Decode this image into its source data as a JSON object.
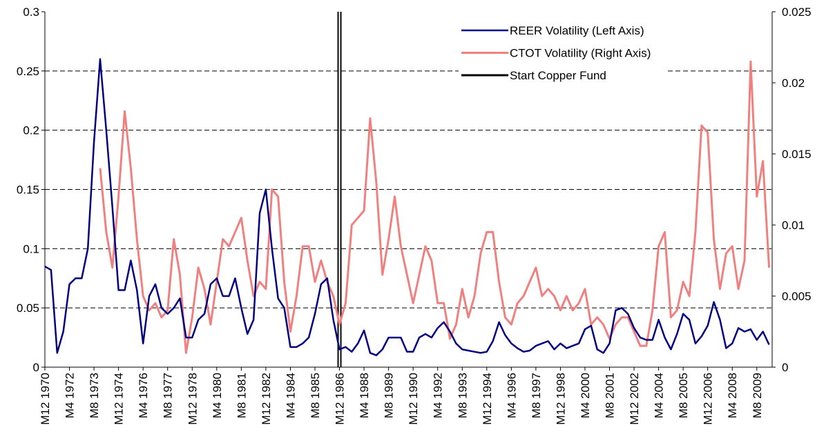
{
  "chart_data": {
    "type": "line",
    "categories": [
      "M12 1970",
      null,
      null,
      null,
      "M4 1972",
      null,
      null,
      null,
      "M8 1973",
      null,
      null,
      null,
      "M12 1974",
      null,
      null,
      null,
      "M4 1976",
      null,
      null,
      null,
      "M8 1977",
      null,
      null,
      null,
      "M12 1978",
      null,
      null,
      null,
      "M4 1980",
      null,
      null,
      null,
      "M8 1981",
      null,
      null,
      null,
      "M12 1982",
      null,
      null,
      null,
      "M4 1984",
      null,
      null,
      null,
      "M8 1985",
      null,
      null,
      null,
      "M12 1986",
      null,
      null,
      null,
      "M4 1988",
      null,
      null,
      null,
      "M8 1989",
      null,
      null,
      null,
      "M12 1990",
      null,
      null,
      null,
      "M4 1992",
      null,
      null,
      null,
      "M8 1993",
      null,
      null,
      null,
      "M12 1994",
      null,
      null,
      null,
      "M4 1996",
      null,
      null,
      null,
      "M8 1997",
      null,
      null,
      null,
      "M12 1998",
      null,
      null,
      null,
      "M4 2000",
      null,
      null,
      null,
      "M8 2001",
      null,
      null,
      null,
      "M12 2002",
      null,
      null,
      null,
      "M4 2004",
      null,
      null,
      null,
      "M8 2005",
      null,
      null,
      null,
      "M12 2006",
      null,
      null,
      null,
      "M4 2008",
      null,
      null,
      null,
      "M8 2009",
      null,
      null
    ],
    "series": [
      {
        "name": "REER Volatility (Left Axis)",
        "color": "#000080",
        "axis": "y",
        "values": [
          0.085,
          0.082,
          0.012,
          0.03,
          0.07,
          0.075,
          0.075,
          0.1,
          0.19,
          0.26,
          0.2,
          0.135,
          0.065,
          0.065,
          0.09,
          0.065,
          0.02,
          0.06,
          0.07,
          0.05,
          0.045,
          0.05,
          0.058,
          0.025,
          0.025,
          0.04,
          0.045,
          0.07,
          0.075,
          0.06,
          0.06,
          0.075,
          0.05,
          0.028,
          0.04,
          0.13,
          0.15,
          0.1,
          0.058,
          0.05,
          0.017,
          0.017,
          0.02,
          0.025,
          0.045,
          0.07,
          0.075,
          0.04,
          0.015,
          0.017,
          0.013,
          0.02,
          0.031,
          0.012,
          0.01,
          0.015,
          0.025,
          0.025,
          0.025,
          0.013,
          0.013,
          0.025,
          0.028,
          0.025,
          0.033,
          0.038,
          0.03,
          0.02,
          0.015,
          0.014,
          0.013,
          0.012,
          0.013,
          0.022,
          0.038,
          0.027,
          0.02,
          0.016,
          0.013,
          0.014,
          0.018,
          0.02,
          0.022,
          0.015,
          0.02,
          0.016,
          0.018,
          0.02,
          0.032,
          0.035,
          0.015,
          0.012,
          0.02,
          0.048,
          0.05,
          0.045,
          0.033,
          0.025,
          0.023,
          0.023,
          0.04,
          0.025,
          0.015,
          0.028,
          0.045,
          0.04,
          0.02,
          0.026,
          0.035,
          0.055,
          0.04,
          0.016,
          0.02,
          0.033,
          0.03,
          0.032,
          0.023,
          0.03,
          0.019
        ]
      },
      {
        "name": "CTOT Volatility (Right Axis)",
        "color": "#f08080",
        "axis": "y2",
        "values": [
          null,
          null,
          null,
          null,
          null,
          null,
          null,
          null,
          null,
          0.014,
          0.0095,
          0.007,
          0.012,
          0.018,
          0.014,
          0.009,
          0.005,
          0.004,
          0.0045,
          0.0035,
          0.004,
          0.009,
          0.0065,
          0.001,
          0.0035,
          0.007,
          0.0055,
          0.003,
          0.006,
          0.009,
          0.0085,
          0.0095,
          0.0105,
          0.0075,
          0.005,
          0.006,
          0.0055,
          0.0125,
          0.012,
          0.006,
          0.0025,
          0.005,
          0.0085,
          0.0085,
          0.006,
          0.0075,
          0.006,
          0.005,
          0.003,
          0.0045,
          0.01,
          0.0105,
          0.011,
          0.0175,
          0.013,
          0.0065,
          0.009,
          0.012,
          0.0085,
          0.0065,
          0.0045,
          0.0065,
          0.0085,
          0.0075,
          0.0045,
          0.0045,
          0.002,
          0.003,
          0.0055,
          0.0035,
          0.005,
          0.008,
          0.0095,
          0.0095,
          0.006,
          0.0035,
          0.003,
          0.0045,
          0.005,
          0.006,
          0.007,
          0.005,
          0.0055,
          0.005,
          0.004,
          0.005,
          0.004,
          0.0045,
          0.0055,
          0.003,
          0.0035,
          0.003,
          0.002,
          0.003,
          0.0035,
          0.0035,
          0.0025,
          0.0015,
          0.0015,
          0.004,
          0.0085,
          0.0095,
          0.0035,
          0.004,
          0.006,
          0.005,
          0.0095,
          0.017,
          0.0165,
          0.009,
          0.0055,
          0.008,
          0.0085,
          0.0055,
          0.0075,
          0.0215,
          0.012,
          0.0145,
          0.007
        ]
      }
    ],
    "vlines": [
      {
        "name": "Start Copper Fund",
        "color": "#000000",
        "category": "M12 1986"
      }
    ],
    "ylim": [
      0,
      0.3
    ],
    "yticks": [
      0,
      0.05,
      0.1,
      0.15,
      0.2,
      0.25,
      0.3
    ],
    "y2lim": [
      0,
      0.025
    ],
    "y2ticks": [
      0,
      0.005,
      0.01,
      0.015,
      0.02,
      0.025
    ],
    "grid": true,
    "legend": "top-right"
  }
}
